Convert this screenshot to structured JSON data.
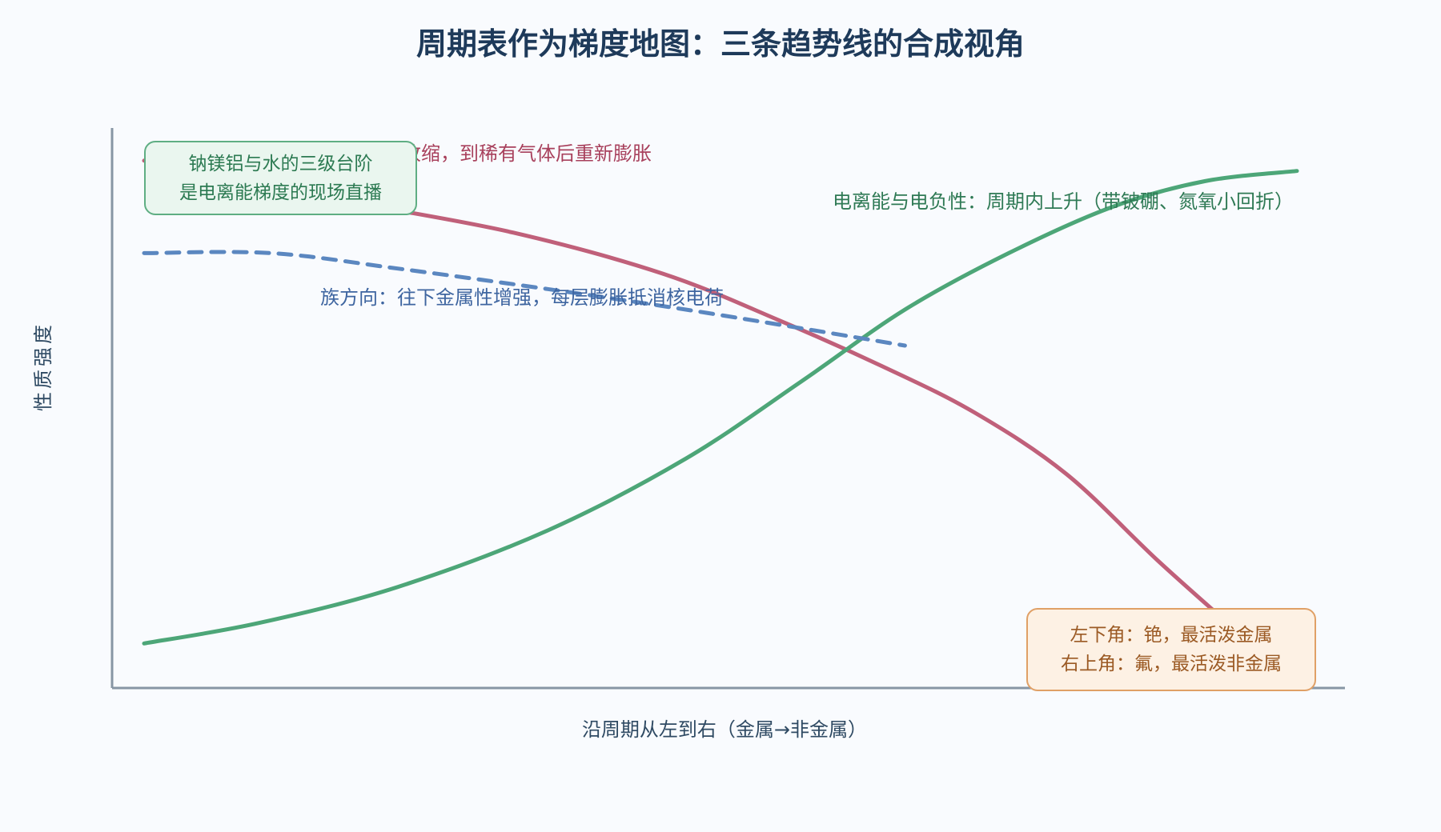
{
  "chart_data": {
    "type": "line",
    "title": "周期表作为梯度地图：三条趋势线的合成视角",
    "xlabel": "沿周期从左到右（金属→非金属）",
    "ylabel": "性质强度",
    "x_range": [
      0,
      100
    ],
    "y_range": [
      0,
      100
    ],
    "grid": false,
    "series": [
      {
        "label": "原子半径：周期内收缩，到稀有气体后重新膨胀",
        "color": "#c0607a",
        "dashed": false,
        "points": [
          [
            0,
            98
          ],
          [
            8,
            95
          ],
          [
            18,
            90
          ],
          [
            32,
            84
          ],
          [
            45,
            76
          ],
          [
            55,
            67
          ],
          [
            64,
            58
          ],
          [
            72,
            49
          ],
          [
            80,
            37
          ],
          [
            88,
            20
          ],
          [
            95,
            6
          ]
        ]
      },
      {
        "label": "电离能与电负性：周期内上升（带铍硼、氮氧小回折）",
        "color": "#4da678",
        "dashed": false,
        "points": [
          [
            0,
            4
          ],
          [
            10,
            8
          ],
          [
            22,
            15
          ],
          [
            35,
            26
          ],
          [
            47,
            40
          ],
          [
            57,
            55
          ],
          [
            66,
            69
          ],
          [
            75,
            80
          ],
          [
            84,
            89
          ],
          [
            92,
            94
          ],
          [
            100,
            96
          ]
        ]
      },
      {
        "label": "族方向：往下金属性增强，每层膨胀抵消核电荷",
        "color": "#5b87c0",
        "dashed": true,
        "points": [
          [
            0,
            80
          ],
          [
            11,
            80
          ],
          [
            22,
            77
          ],
          [
            35,
            73
          ],
          [
            47,
            69
          ],
          [
            58,
            65
          ],
          [
            66,
            62
          ]
        ]
      }
    ],
    "annotations": {
      "green_box": [
        "钠镁铝与水的三级台阶",
        "是电离能梯度的现场直播"
      ],
      "orange_box": [
        "左下角：铯，最活泼金属",
        "右上角：氟，最活泼非金属"
      ]
    }
  }
}
